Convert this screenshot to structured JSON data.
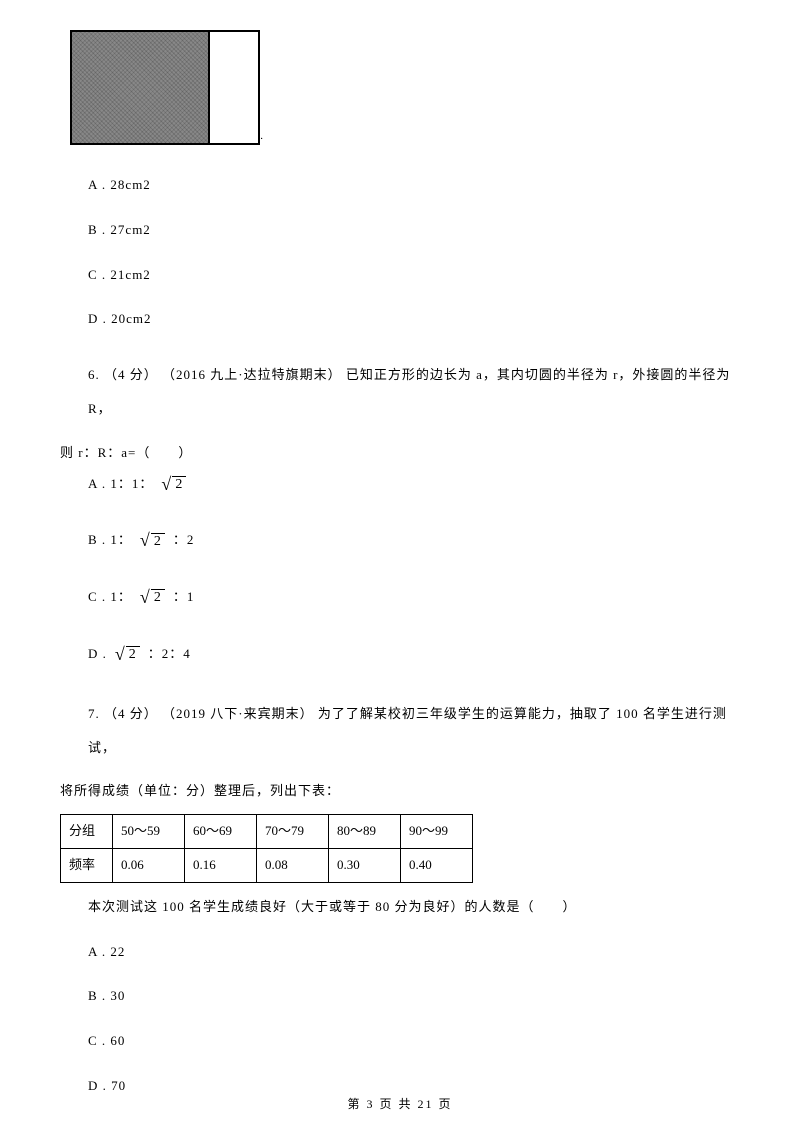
{
  "figure": {
    "dot": "."
  },
  "options5": {
    "a": "A .  28cm2",
    "b": "B .  27cm2",
    "c": "C .  21cm2",
    "d": "D .  20cm2"
  },
  "q6": {
    "line1": "6.  （4 分） （2016 九上·达拉特旗期末） 已知正方形的边长为 a，其内切圆的半径为 r，外接圆的半径为 R，",
    "line2": "则 r：R：a=（　　）",
    "sqrt": "2",
    "a_prefix": "A .  1：1：",
    "b_prefix": "B .  1：",
    "b_suffix": "：2",
    "c_prefix": "C .  1：",
    "c_suffix": "：1",
    "d_prefix": "D . ",
    "d_suffix": "：2：4"
  },
  "q7": {
    "line1": "7.  （4 分） （2019 八下·来宾期末） 为了了解某校初三年级学生的运算能力，抽取了 100 名学生进行测试，",
    "line2": "将所得成绩（单位：分）整理后，列出下表：",
    "post": "本次测试这 100 名学生成绩良好（大于或等于 80 分为良好）的人数是（　　）"
  },
  "table": {
    "headers": [
      "分组",
      "50～59",
      "60～69",
      "70～79",
      "80～89",
      "90～99"
    ],
    "row2": [
      "频率",
      "0.06",
      "0.16",
      "0.08",
      "0.30",
      "0.40"
    ]
  },
  "options7": {
    "a": "A .  22",
    "b": "B .  30",
    "c": "C .  60",
    "d": "D .  70"
  },
  "footer": "第  3  页  共  21  页"
}
